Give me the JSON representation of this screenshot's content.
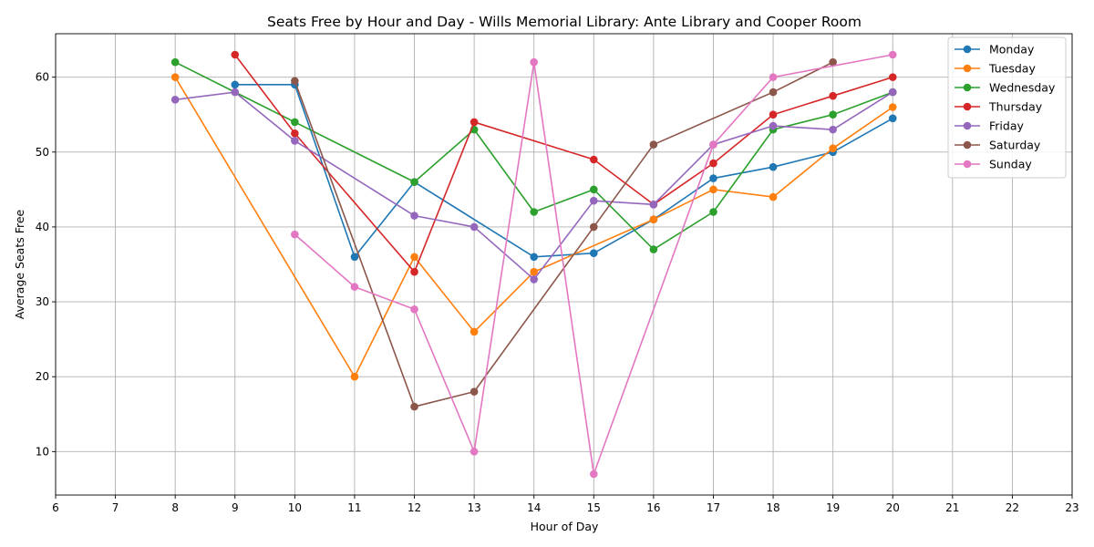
{
  "chart_data": {
    "type": "line",
    "title": "Seats Free by Hour and Day - Wills Memorial Library: Ante Library and Cooper Room",
    "xlabel": "Hour of Day",
    "ylabel": "Average Seats Free",
    "xlim": [
      6,
      23
    ],
    "ylim": [
      4.2,
      65.8
    ],
    "xticks": [
      6,
      7,
      8,
      9,
      10,
      11,
      12,
      13,
      14,
      15,
      16,
      17,
      18,
      19,
      20,
      21,
      22,
      23
    ],
    "yticks": [
      10,
      20,
      30,
      40,
      50,
      60
    ],
    "grid": true,
    "legend_position": "top-right",
    "series": [
      {
        "name": "Monday",
        "color": "#1f77b4",
        "x": [
          9,
          10,
          11,
          12,
          14,
          15,
          16,
          17,
          18,
          19,
          20
        ],
        "y": [
          59,
          59,
          36,
          46,
          36,
          36.5,
          41,
          46.5,
          48,
          50,
          54.5
        ]
      },
      {
        "name": "Tuesday",
        "color": "#ff7f0e",
        "x": [
          8,
          11,
          12,
          13,
          14,
          16,
          17,
          18,
          19,
          20
        ],
        "y": [
          60,
          20,
          36,
          26,
          34,
          41,
          45,
          44,
          50.5,
          56
        ]
      },
      {
        "name": "Wednesday",
        "color": "#2ca02c",
        "x": [
          8,
          10,
          12,
          13,
          14,
          15,
          16,
          17,
          18,
          19,
          20
        ],
        "y": [
          62,
          54,
          46,
          53,
          42,
          45,
          37,
          42,
          53,
          55,
          58
        ]
      },
      {
        "name": "Thursday",
        "color": "#d62728",
        "x": [
          9,
          10,
          12,
          13,
          15,
          16,
          17,
          18,
          19,
          20
        ],
        "y": [
          63,
          52.5,
          34,
          54,
          49,
          43,
          48.5,
          55,
          57.5,
          60
        ]
      },
      {
        "name": "Friday",
        "color": "#9467bd",
        "x": [
          8,
          9,
          10,
          12,
          13,
          14,
          15,
          16,
          17,
          18,
          19,
          20
        ],
        "y": [
          57,
          58,
          51.5,
          41.5,
          40,
          33,
          43.5,
          43,
          51,
          53.5,
          53,
          58
        ]
      },
      {
        "name": "Saturday",
        "color": "#8c564b",
        "x": [
          10,
          12,
          13,
          15,
          16,
          18,
          19
        ],
        "y": [
          59.5,
          16,
          18,
          40,
          51,
          58,
          62
        ]
      },
      {
        "name": "Sunday",
        "color": "#e377c2",
        "x": [
          10,
          11,
          12,
          13,
          14,
          15,
          17,
          18,
          20
        ],
        "y": [
          39,
          32,
          29,
          10,
          62,
          7,
          51,
          60,
          63
        ]
      }
    ]
  }
}
